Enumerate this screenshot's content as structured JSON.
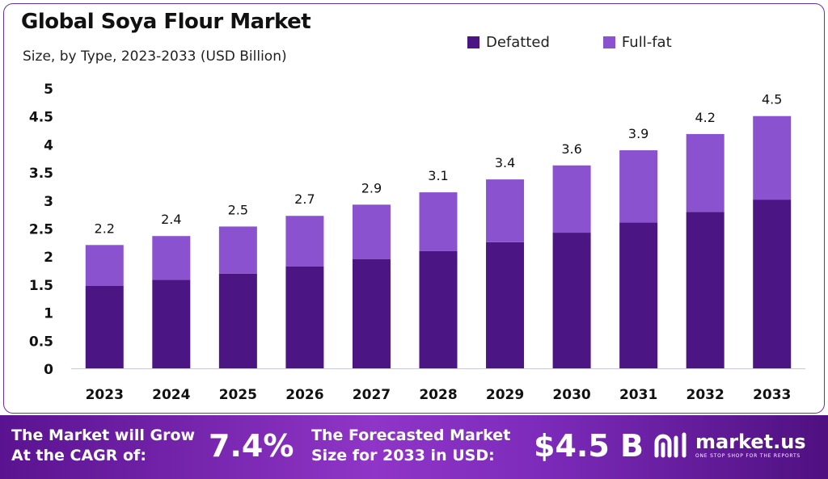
{
  "header": {
    "title": "Global Soya Flour Market",
    "subtitle": "Size, by Type, 2023-2033 (USD Billion)"
  },
  "legend": [
    {
      "label": "Defatted",
      "color": "#4b1583"
    },
    {
      "label": "Full-fat",
      "color": "#8b52cf"
    }
  ],
  "chart_data": {
    "type": "bar",
    "stacked": true,
    "categories": [
      "2023",
      "2024",
      "2025",
      "2026",
      "2027",
      "2028",
      "2029",
      "2030",
      "2031",
      "2032",
      "2033"
    ],
    "series": [
      {
        "name": "Defatted",
        "color": "#4b1583",
        "values": [
          1.47,
          1.58,
          1.69,
          1.82,
          1.95,
          2.09,
          2.25,
          2.42,
          2.6,
          2.79,
          3.01
        ]
      },
      {
        "name": "Full-fat",
        "color": "#8b52cf",
        "values": [
          0.73,
          0.78,
          0.84,
          0.9,
          0.97,
          1.05,
          1.12,
          1.2,
          1.29,
          1.39,
          1.49
        ]
      }
    ],
    "totals_labels": [
      "2.2",
      "2.4",
      "2.5",
      "2.7",
      "2.9",
      "3.1",
      "3.4",
      "3.6",
      "3.9",
      "4.2",
      "4.5"
    ],
    "yticks": [
      "0",
      "0.5",
      "1",
      "1.5",
      "2",
      "2.5",
      "3",
      "3.5",
      "4",
      "4.5",
      "5"
    ],
    "ylim": [
      0,
      5
    ],
    "grid": false,
    "legend_position": "top-right"
  },
  "banner": {
    "cagr_text_line1": "The Market will Grow",
    "cagr_text_line2": "At the CAGR of:",
    "cagr_value": "7.4%",
    "forecast_text_line1": "The Forecasted Market",
    "forecast_text_line2": "Size for 2033 in USD:",
    "forecast_value": "$4.5 B",
    "brand_name": "market.us",
    "brand_tagline": "ONE STOP SHOP FOR THE REPORTS"
  }
}
